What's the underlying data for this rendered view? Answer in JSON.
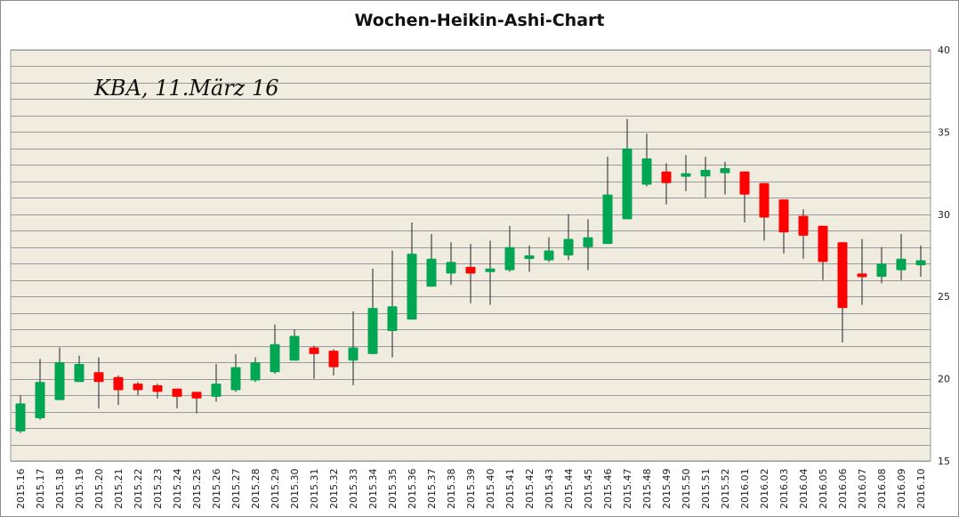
{
  "chart_data": {
    "type": "candlestick",
    "title": "Wochen-Heikin-Ashi-Chart",
    "annotation": "KBA, 11.März 16",
    "ylim": [
      15,
      40
    ],
    "yticks": [
      15,
      20,
      25,
      30,
      35,
      40
    ],
    "y_axis_side": "right",
    "grid": true,
    "colors": {
      "up": "#00a651",
      "down": "#ff0000",
      "background": "#f0ece0",
      "grid": "#9a9a9a"
    },
    "candles": [
      {
        "x": "2015.16",
        "open": 16.8,
        "close": 18.5,
        "high": 19.0,
        "low": 16.7
      },
      {
        "x": "2015.17",
        "open": 17.6,
        "close": 19.8,
        "high": 21.2,
        "low": 17.5
      },
      {
        "x": "2015.18",
        "open": 18.7,
        "close": 21.0,
        "high": 21.9,
        "low": 18.7
      },
      {
        "x": "2015.19",
        "open": 19.8,
        "close": 20.9,
        "high": 21.4,
        "low": 19.8
      },
      {
        "x": "2015.20",
        "open": 20.4,
        "close": 19.8,
        "high": 21.3,
        "low": 18.2
      },
      {
        "x": "2015.21",
        "open": 20.1,
        "close": 19.3,
        "high": 20.2,
        "low": 18.4
      },
      {
        "x": "2015.22",
        "open": 19.7,
        "close": 19.3,
        "high": 19.8,
        "low": 19.0
      },
      {
        "x": "2015.23",
        "open": 19.6,
        "close": 19.2,
        "high": 19.7,
        "low": 18.8
      },
      {
        "x": "2015.24",
        "open": 19.4,
        "close": 18.9,
        "high": 19.4,
        "low": 18.2
      },
      {
        "x": "2015.25",
        "open": 19.2,
        "close": 18.8,
        "high": 19.2,
        "low": 17.9
      },
      {
        "x": "2015.26",
        "open": 18.9,
        "close": 19.7,
        "high": 20.9,
        "low": 18.6
      },
      {
        "x": "2015.27",
        "open": 19.3,
        "close": 20.7,
        "high": 21.5,
        "low": 19.2
      },
      {
        "x": "2015.28",
        "open": 19.9,
        "close": 21.0,
        "high": 21.3,
        "low": 19.8
      },
      {
        "x": "2015.29",
        "open": 20.4,
        "close": 22.1,
        "high": 23.3,
        "low": 20.3
      },
      {
        "x": "2015.30",
        "open": 21.1,
        "close": 22.6,
        "high": 23.0,
        "low": 21.1
      },
      {
        "x": "2015.31",
        "open": 21.9,
        "close": 21.5,
        "high": 22.0,
        "low": 20.0
      },
      {
        "x": "2015.32",
        "open": 21.7,
        "close": 20.7,
        "high": 21.8,
        "low": 20.2
      },
      {
        "x": "2015.33",
        "open": 21.1,
        "close": 21.9,
        "high": 24.1,
        "low": 19.6
      },
      {
        "x": "2015.34",
        "open": 21.5,
        "close": 24.3,
        "high": 26.7,
        "low": 21.5
      },
      {
        "x": "2015.35",
        "open": 22.9,
        "close": 24.4,
        "high": 27.8,
        "low": 21.3
      },
      {
        "x": "2015.36",
        "open": 23.6,
        "close": 27.6,
        "high": 29.5,
        "low": 23.6
      },
      {
        "x": "2015.37",
        "open": 25.6,
        "close": 27.3,
        "high": 28.8,
        "low": 25.6
      },
      {
        "x": "2015.38",
        "open": 26.4,
        "close": 27.1,
        "high": 28.3,
        "low": 25.7
      },
      {
        "x": "2015.39",
        "open": 26.8,
        "close": 26.4,
        "high": 28.2,
        "low": 24.6
      },
      {
        "x": "2015.40",
        "open": 26.6,
        "close": 26.7,
        "high": 28.4,
        "low": 24.5
      },
      {
        "x": "2015.41",
        "open": 26.6,
        "close": 28.0,
        "high": 29.3,
        "low": 26.5
      },
      {
        "x": "2015.42",
        "open": 27.3,
        "close": 27.5,
        "high": 28.1,
        "low": 26.5
      },
      {
        "x": "2015.43",
        "open": 27.2,
        "close": 27.8,
        "high": 28.6,
        "low": 27.1
      },
      {
        "x": "2015.44",
        "open": 27.5,
        "close": 28.5,
        "high": 30.0,
        "low": 27.2
      },
      {
        "x": "2015.45",
        "open": 28.0,
        "close": 28.6,
        "high": 29.7,
        "low": 26.6
      },
      {
        "x": "2015.46",
        "open": 28.2,
        "close": 31.2,
        "high": 33.5,
        "low": 28.2
      },
      {
        "x": "2015.47",
        "open": 29.7,
        "close": 34.0,
        "high": 35.8,
        "low": 29.7
      },
      {
        "x": "2015.48",
        "open": 31.8,
        "close": 33.4,
        "high": 34.9,
        "low": 31.7
      },
      {
        "x": "2015.49",
        "open": 32.6,
        "close": 31.9,
        "high": 33.1,
        "low": 30.6
      },
      {
        "x": "2015.50",
        "open": 32.3,
        "close": 32.5,
        "high": 33.6,
        "low": 31.4
      },
      {
        "x": "2015.51",
        "open": 32.3,
        "close": 32.7,
        "high": 33.5,
        "low": 31.0
      },
      {
        "x": "2015.52",
        "open": 32.5,
        "close": 32.8,
        "high": 33.2,
        "low": 31.2
      },
      {
        "x": "2016.01",
        "open": 32.6,
        "close": 31.2,
        "high": 32.6,
        "low": 29.5
      },
      {
        "x": "2016.02",
        "open": 31.9,
        "close": 29.8,
        "high": 31.9,
        "low": 28.4
      },
      {
        "x": "2016.03",
        "open": 30.9,
        "close": 28.9,
        "high": 30.9,
        "low": 27.6
      },
      {
        "x": "2016.04",
        "open": 29.9,
        "close": 28.7,
        "high": 30.3,
        "low": 27.3
      },
      {
        "x": "2016.05",
        "open": 29.3,
        "close": 27.1,
        "high": 29.3,
        "low": 26.0
      },
      {
        "x": "2016.06",
        "open": 28.3,
        "close": 24.3,
        "high": 28.3,
        "low": 22.2
      },
      {
        "x": "2016.07",
        "open": 26.4,
        "close": 26.2,
        "high": 28.5,
        "low": 24.5
      },
      {
        "x": "2016.08",
        "open": 26.2,
        "close": 27.0,
        "high": 28.0,
        "low": 25.8
      },
      {
        "x": "2016.09",
        "open": 26.6,
        "close": 27.3,
        "high": 28.8,
        "low": 26.0
      },
      {
        "x": "2016.10",
        "open": 26.9,
        "close": 27.2,
        "high": 28.1,
        "low": 26.2
      }
    ]
  }
}
